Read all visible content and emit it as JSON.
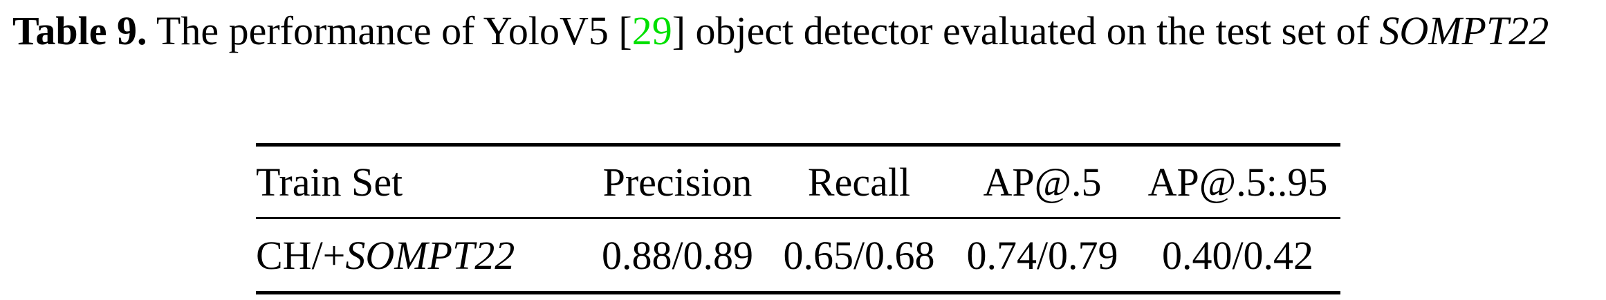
{
  "caption": {
    "label": "Table 9.",
    "text_before_cite": " The performance of YoloV5 [",
    "cite": "29",
    "text_after_cite": "] object detector evaluated on the test set of ",
    "dataset": "SOMPT22"
  },
  "table": {
    "headers": [
      "Train Set",
      "Precision",
      "Recall",
      "AP@.5",
      "AP@.5:.95"
    ],
    "rows": [
      {
        "train_set_prefix": "CH/+",
        "train_set_dataset": "SOMPT22",
        "precision": "0.88/0.89",
        "recall": "0.65/0.68",
        "ap50": "0.74/0.79",
        "ap50_95": "0.40/0.42"
      }
    ]
  },
  "colors": {
    "citation": "#00e000",
    "text": "#000000"
  }
}
